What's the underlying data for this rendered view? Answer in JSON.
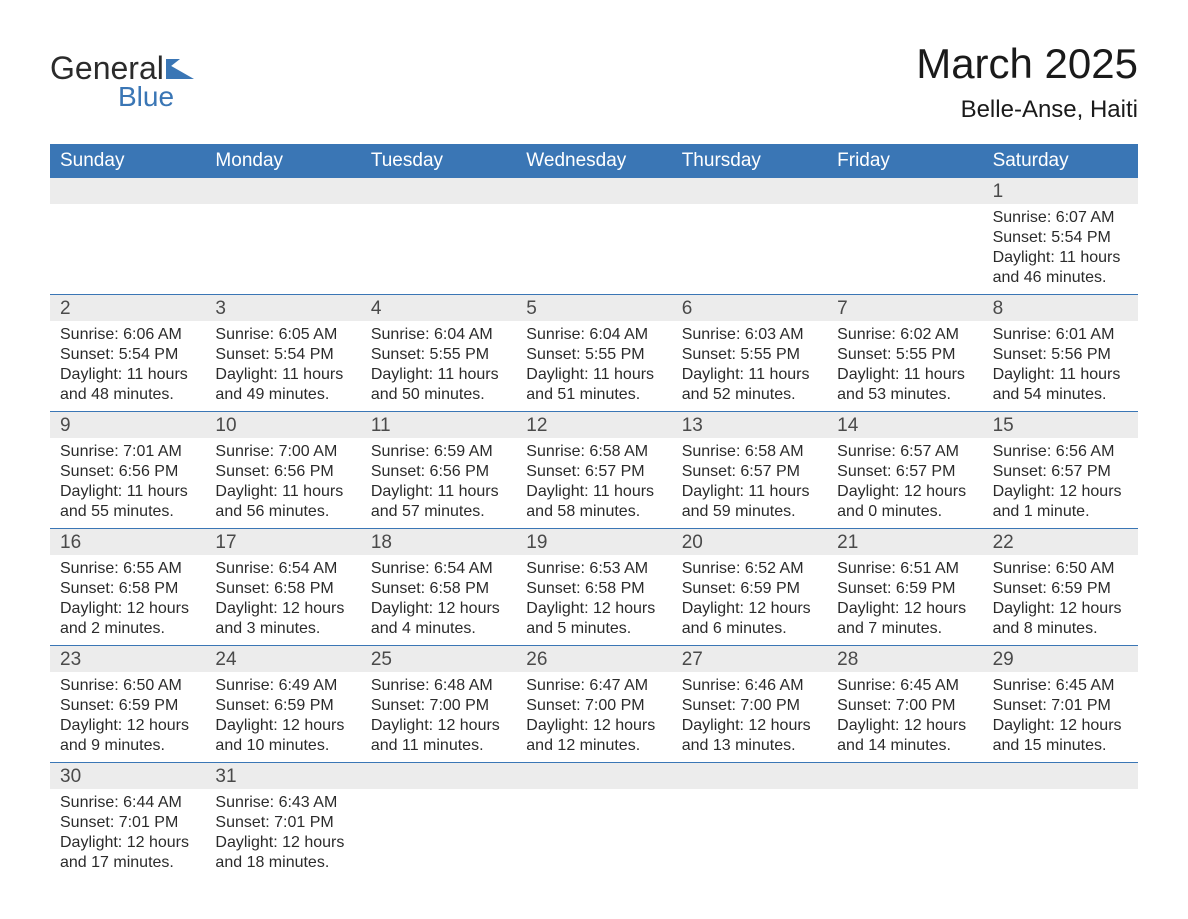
{
  "logo": {
    "text_top": "General",
    "text_bottom": "Blue",
    "shape_color": "#3a76b5",
    "text_color_top": "#2b2b2b"
  },
  "title": "March 2025",
  "location": "Belle-Anse, Haiti",
  "header_bg": "#3a76b5",
  "header_text_color": "#ffffff",
  "daynum_bg": "#ececec",
  "border_color": "#3a76b5",
  "body_text_color": "#2b2b2b",
  "weekdays": [
    "Sunday",
    "Monday",
    "Tuesday",
    "Wednesday",
    "Thursday",
    "Friday",
    "Saturday"
  ],
  "weeks": [
    {
      "nums": [
        "",
        "",
        "",
        "",
        "",
        "",
        "1"
      ],
      "cells": [
        null,
        null,
        null,
        null,
        null,
        null,
        {
          "sunrise": "Sunrise: 6:07 AM",
          "sunset": "Sunset: 5:54 PM",
          "day1": "Daylight: 11 hours",
          "day2": "and 46 minutes."
        }
      ]
    },
    {
      "nums": [
        "2",
        "3",
        "4",
        "5",
        "6",
        "7",
        "8"
      ],
      "cells": [
        {
          "sunrise": "Sunrise: 6:06 AM",
          "sunset": "Sunset: 5:54 PM",
          "day1": "Daylight: 11 hours",
          "day2": "and 48 minutes."
        },
        {
          "sunrise": "Sunrise: 6:05 AM",
          "sunset": "Sunset: 5:54 PM",
          "day1": "Daylight: 11 hours",
          "day2": "and 49 minutes."
        },
        {
          "sunrise": "Sunrise: 6:04 AM",
          "sunset": "Sunset: 5:55 PM",
          "day1": "Daylight: 11 hours",
          "day2": "and 50 minutes."
        },
        {
          "sunrise": "Sunrise: 6:04 AM",
          "sunset": "Sunset: 5:55 PM",
          "day1": "Daylight: 11 hours",
          "day2": "and 51 minutes."
        },
        {
          "sunrise": "Sunrise: 6:03 AM",
          "sunset": "Sunset: 5:55 PM",
          "day1": "Daylight: 11 hours",
          "day2": "and 52 minutes."
        },
        {
          "sunrise": "Sunrise: 6:02 AM",
          "sunset": "Sunset: 5:55 PM",
          "day1": "Daylight: 11 hours",
          "day2": "and 53 minutes."
        },
        {
          "sunrise": "Sunrise: 6:01 AM",
          "sunset": "Sunset: 5:56 PM",
          "day1": "Daylight: 11 hours",
          "day2": "and 54 minutes."
        }
      ]
    },
    {
      "nums": [
        "9",
        "10",
        "11",
        "12",
        "13",
        "14",
        "15"
      ],
      "cells": [
        {
          "sunrise": "Sunrise: 7:01 AM",
          "sunset": "Sunset: 6:56 PM",
          "day1": "Daylight: 11 hours",
          "day2": "and 55 minutes."
        },
        {
          "sunrise": "Sunrise: 7:00 AM",
          "sunset": "Sunset: 6:56 PM",
          "day1": "Daylight: 11 hours",
          "day2": "and 56 minutes."
        },
        {
          "sunrise": "Sunrise: 6:59 AM",
          "sunset": "Sunset: 6:56 PM",
          "day1": "Daylight: 11 hours",
          "day2": "and 57 minutes."
        },
        {
          "sunrise": "Sunrise: 6:58 AM",
          "sunset": "Sunset: 6:57 PM",
          "day1": "Daylight: 11 hours",
          "day2": "and 58 minutes."
        },
        {
          "sunrise": "Sunrise: 6:58 AM",
          "sunset": "Sunset: 6:57 PM",
          "day1": "Daylight: 11 hours",
          "day2": "and 59 minutes."
        },
        {
          "sunrise": "Sunrise: 6:57 AM",
          "sunset": "Sunset: 6:57 PM",
          "day1": "Daylight: 12 hours",
          "day2": "and 0 minutes."
        },
        {
          "sunrise": "Sunrise: 6:56 AM",
          "sunset": "Sunset: 6:57 PM",
          "day1": "Daylight: 12 hours",
          "day2": "and 1 minute."
        }
      ]
    },
    {
      "nums": [
        "16",
        "17",
        "18",
        "19",
        "20",
        "21",
        "22"
      ],
      "cells": [
        {
          "sunrise": "Sunrise: 6:55 AM",
          "sunset": "Sunset: 6:58 PM",
          "day1": "Daylight: 12 hours",
          "day2": "and 2 minutes."
        },
        {
          "sunrise": "Sunrise: 6:54 AM",
          "sunset": "Sunset: 6:58 PM",
          "day1": "Daylight: 12 hours",
          "day2": "and 3 minutes."
        },
        {
          "sunrise": "Sunrise: 6:54 AM",
          "sunset": "Sunset: 6:58 PM",
          "day1": "Daylight: 12 hours",
          "day2": "and 4 minutes."
        },
        {
          "sunrise": "Sunrise: 6:53 AM",
          "sunset": "Sunset: 6:58 PM",
          "day1": "Daylight: 12 hours",
          "day2": "and 5 minutes."
        },
        {
          "sunrise": "Sunrise: 6:52 AM",
          "sunset": "Sunset: 6:59 PM",
          "day1": "Daylight: 12 hours",
          "day2": "and 6 minutes."
        },
        {
          "sunrise": "Sunrise: 6:51 AM",
          "sunset": "Sunset: 6:59 PM",
          "day1": "Daylight: 12 hours",
          "day2": "and 7 minutes."
        },
        {
          "sunrise": "Sunrise: 6:50 AM",
          "sunset": "Sunset: 6:59 PM",
          "day1": "Daylight: 12 hours",
          "day2": "and 8 minutes."
        }
      ]
    },
    {
      "nums": [
        "23",
        "24",
        "25",
        "26",
        "27",
        "28",
        "29"
      ],
      "cells": [
        {
          "sunrise": "Sunrise: 6:50 AM",
          "sunset": "Sunset: 6:59 PM",
          "day1": "Daylight: 12 hours",
          "day2": "and 9 minutes."
        },
        {
          "sunrise": "Sunrise: 6:49 AM",
          "sunset": "Sunset: 6:59 PM",
          "day1": "Daylight: 12 hours",
          "day2": "and 10 minutes."
        },
        {
          "sunrise": "Sunrise: 6:48 AM",
          "sunset": "Sunset: 7:00 PM",
          "day1": "Daylight: 12 hours",
          "day2": "and 11 minutes."
        },
        {
          "sunrise": "Sunrise: 6:47 AM",
          "sunset": "Sunset: 7:00 PM",
          "day1": "Daylight: 12 hours",
          "day2": "and 12 minutes."
        },
        {
          "sunrise": "Sunrise: 6:46 AM",
          "sunset": "Sunset: 7:00 PM",
          "day1": "Daylight: 12 hours",
          "day2": "and 13 minutes."
        },
        {
          "sunrise": "Sunrise: 6:45 AM",
          "sunset": "Sunset: 7:00 PM",
          "day1": "Daylight: 12 hours",
          "day2": "and 14 minutes."
        },
        {
          "sunrise": "Sunrise: 6:45 AM",
          "sunset": "Sunset: 7:01 PM",
          "day1": "Daylight: 12 hours",
          "day2": "and 15 minutes."
        }
      ]
    },
    {
      "nums": [
        "30",
        "31",
        "",
        "",
        "",
        "",
        ""
      ],
      "cells": [
        {
          "sunrise": "Sunrise: 6:44 AM",
          "sunset": "Sunset: 7:01 PM",
          "day1": "Daylight: 12 hours",
          "day2": "and 17 minutes."
        },
        {
          "sunrise": "Sunrise: 6:43 AM",
          "sunset": "Sunset: 7:01 PM",
          "day1": "Daylight: 12 hours",
          "day2": "and 18 minutes."
        },
        null,
        null,
        null,
        null,
        null
      ]
    }
  ]
}
